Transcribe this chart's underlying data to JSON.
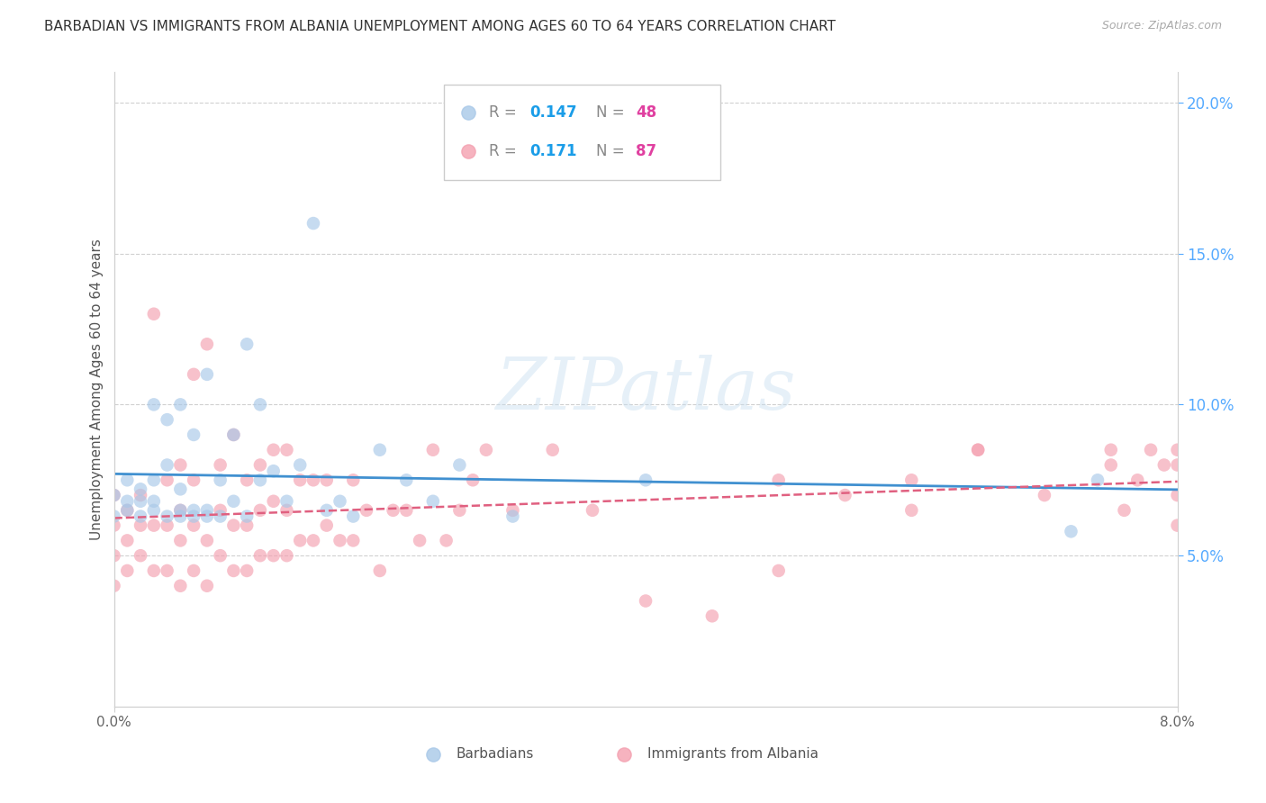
{
  "title": "BARBADIAN VS IMMIGRANTS FROM ALBANIA UNEMPLOYMENT AMONG AGES 60 TO 64 YEARS CORRELATION CHART",
  "source": "Source: ZipAtlas.com",
  "ylabel": "Unemployment Among Ages 60 to 64 years",
  "xlim": [
    0.0,
    0.08
  ],
  "ylim": [
    0.0,
    0.21
  ],
  "yticks": [
    0.05,
    0.1,
    0.15,
    0.2
  ],
  "ytick_labels": [
    "5.0%",
    "10.0%",
    "15.0%",
    "20.0%"
  ],
  "series1_label": "Barbadians",
  "series2_label": "Immigrants from Albania",
  "series1_color": "#a8c8e8",
  "series2_color": "#f4a0b0",
  "series1_line_color": "#4090d0",
  "series2_line_color": "#e06080",
  "R1": 0.147,
  "N1": 48,
  "R2": 0.171,
  "N2": 87,
  "legend_R_color": "#1a9de8",
  "legend_N_color": "#e040a0",
  "watermark": "ZIPatlas",
  "background_color": "#ffffff",
  "grid_color": "#d0d0d0",
  "series1_x": [
    0.0,
    0.0,
    0.001,
    0.001,
    0.001,
    0.002,
    0.002,
    0.002,
    0.003,
    0.003,
    0.003,
    0.003,
    0.004,
    0.004,
    0.004,
    0.005,
    0.005,
    0.005,
    0.005,
    0.006,
    0.006,
    0.006,
    0.007,
    0.007,
    0.007,
    0.008,
    0.008,
    0.009,
    0.009,
    0.01,
    0.01,
    0.011,
    0.011,
    0.012,
    0.013,
    0.014,
    0.015,
    0.016,
    0.017,
    0.018,
    0.02,
    0.022,
    0.024,
    0.026,
    0.03,
    0.04,
    0.072,
    0.074
  ],
  "series1_y": [
    0.063,
    0.07,
    0.065,
    0.068,
    0.075,
    0.063,
    0.068,
    0.072,
    0.065,
    0.068,
    0.075,
    0.1,
    0.063,
    0.08,
    0.095,
    0.063,
    0.065,
    0.072,
    0.1,
    0.063,
    0.065,
    0.09,
    0.063,
    0.065,
    0.11,
    0.063,
    0.075,
    0.068,
    0.09,
    0.063,
    0.12,
    0.075,
    0.1,
    0.078,
    0.068,
    0.08,
    0.16,
    0.065,
    0.068,
    0.063,
    0.085,
    0.075,
    0.068,
    0.08,
    0.063,
    0.075,
    0.058,
    0.075
  ],
  "series2_x": [
    0.0,
    0.0,
    0.0,
    0.0,
    0.001,
    0.001,
    0.001,
    0.002,
    0.002,
    0.002,
    0.003,
    0.003,
    0.003,
    0.004,
    0.004,
    0.004,
    0.005,
    0.005,
    0.005,
    0.005,
    0.006,
    0.006,
    0.006,
    0.006,
    0.007,
    0.007,
    0.007,
    0.008,
    0.008,
    0.008,
    0.009,
    0.009,
    0.009,
    0.01,
    0.01,
    0.01,
    0.011,
    0.011,
    0.011,
    0.012,
    0.012,
    0.012,
    0.013,
    0.013,
    0.013,
    0.014,
    0.014,
    0.015,
    0.015,
    0.016,
    0.016,
    0.017,
    0.018,
    0.018,
    0.019,
    0.02,
    0.021,
    0.022,
    0.023,
    0.024,
    0.025,
    0.026,
    0.027,
    0.028,
    0.03,
    0.033,
    0.036,
    0.04,
    0.045,
    0.05,
    0.055,
    0.06,
    0.065,
    0.05,
    0.06,
    0.065,
    0.07,
    0.075,
    0.075,
    0.076,
    0.077,
    0.078,
    0.079,
    0.08,
    0.08,
    0.08,
    0.08
  ],
  "series2_y": [
    0.04,
    0.05,
    0.06,
    0.07,
    0.045,
    0.055,
    0.065,
    0.05,
    0.06,
    0.07,
    0.045,
    0.06,
    0.13,
    0.045,
    0.06,
    0.075,
    0.04,
    0.055,
    0.065,
    0.08,
    0.045,
    0.06,
    0.075,
    0.11,
    0.04,
    0.055,
    0.12,
    0.05,
    0.065,
    0.08,
    0.045,
    0.06,
    0.09,
    0.045,
    0.06,
    0.075,
    0.05,
    0.065,
    0.08,
    0.05,
    0.068,
    0.085,
    0.05,
    0.065,
    0.085,
    0.055,
    0.075,
    0.055,
    0.075,
    0.06,
    0.075,
    0.055,
    0.055,
    0.075,
    0.065,
    0.045,
    0.065,
    0.065,
    0.055,
    0.085,
    0.055,
    0.065,
    0.075,
    0.085,
    0.065,
    0.085,
    0.065,
    0.035,
    0.03,
    0.045,
    0.07,
    0.075,
    0.085,
    0.075,
    0.065,
    0.085,
    0.07,
    0.08,
    0.085,
    0.065,
    0.075,
    0.085,
    0.08,
    0.07,
    0.06,
    0.08,
    0.085
  ]
}
